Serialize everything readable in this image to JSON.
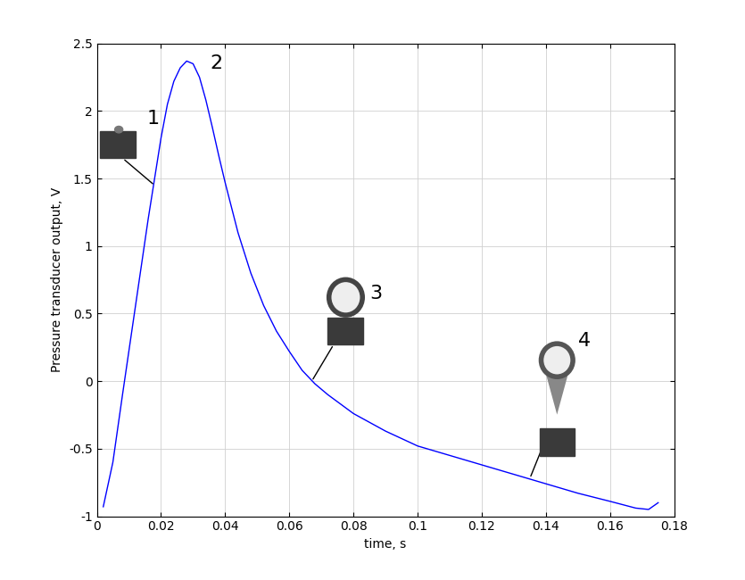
{
  "chart_data": {
    "type": "line",
    "x_label": "time, s",
    "y_label": "Pressure transducer output, V",
    "x": [
      0.002,
      0.005,
      0.008,
      0.012,
      0.016,
      0.018,
      0.02,
      0.022,
      0.024,
      0.026,
      0.028,
      0.03,
      0.032,
      0.034,
      0.036,
      0.038,
      0.04,
      0.044,
      0.048,
      0.052,
      0.056,
      0.06,
      0.064,
      0.068,
      0.072,
      0.076,
      0.08,
      0.09,
      0.1,
      0.11,
      0.12,
      0.13,
      0.14,
      0.15,
      0.16,
      0.168,
      0.172,
      0.175
    ],
    "values": [
      -0.93,
      -0.6,
      -0.1,
      0.55,
      1.2,
      1.5,
      1.8,
      2.05,
      2.22,
      2.32,
      2.37,
      2.35,
      2.25,
      2.08,
      1.88,
      1.67,
      1.47,
      1.1,
      0.8,
      0.56,
      0.37,
      0.22,
      0.08,
      -0.02,
      -0.1,
      -0.17,
      -0.24,
      -0.37,
      -0.48,
      -0.55,
      -0.62,
      -0.69,
      -0.76,
      -0.83,
      -0.89,
      -0.94,
      -0.95,
      -0.9
    ],
    "color": "#0000ff",
    "xlim": [
      0,
      0.18
    ],
    "xticks": [
      0,
      0.02,
      0.04,
      0.06,
      0.08,
      0.1,
      0.12,
      0.14,
      0.16,
      0.18
    ],
    "ylim": [
      -1,
      2.5
    ],
    "yticks": [
      -1,
      -0.5,
      0,
      0.5,
      1,
      1.5,
      2,
      2.5
    ],
    "grid": true,
    "annotations": [
      {
        "text": "1",
        "x": 0.018,
        "y": 1.45
      },
      {
        "text": "2",
        "x": 0.029,
        "y": 2.37
      },
      {
        "text": "3",
        "x": 0.067,
        "y": 0.0
      },
      {
        "text": "4",
        "x": 0.135,
        "y": -0.72
      }
    ]
  }
}
